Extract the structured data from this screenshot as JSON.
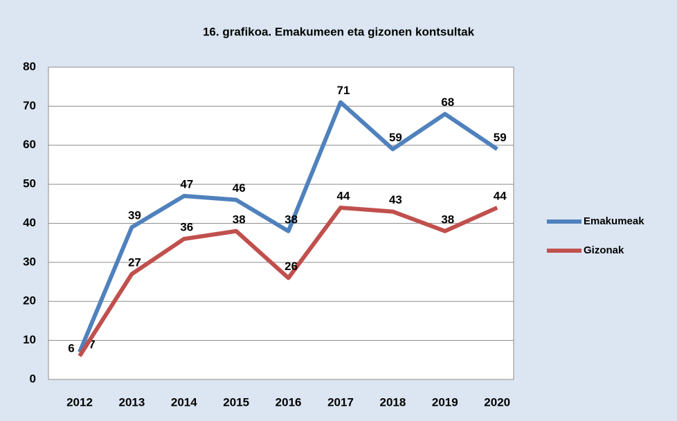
{
  "chart_data": {
    "type": "line",
    "title": "16. grafikoa. Emakumeen eta gizonen kontsultak",
    "categories": [
      "2012",
      "2013",
      "2014",
      "2015",
      "2016",
      "2017",
      "2018",
      "2019",
      "2020"
    ],
    "series": [
      {
        "name": "Emakumeak",
        "color": "#4f81bd",
        "values": [
          7,
          39,
          47,
          46,
          38,
          71,
          59,
          68,
          59
        ]
      },
      {
        "name": "Gizonak",
        "color": "#c0504d",
        "values": [
          6,
          27,
          36,
          38,
          26,
          44,
          43,
          38,
          44
        ]
      }
    ],
    "ylim": [
      0,
      80
    ],
    "yticks": [
      0,
      10,
      20,
      30,
      40,
      50,
      60,
      70,
      80
    ],
    "grid": true,
    "legend": "right"
  }
}
